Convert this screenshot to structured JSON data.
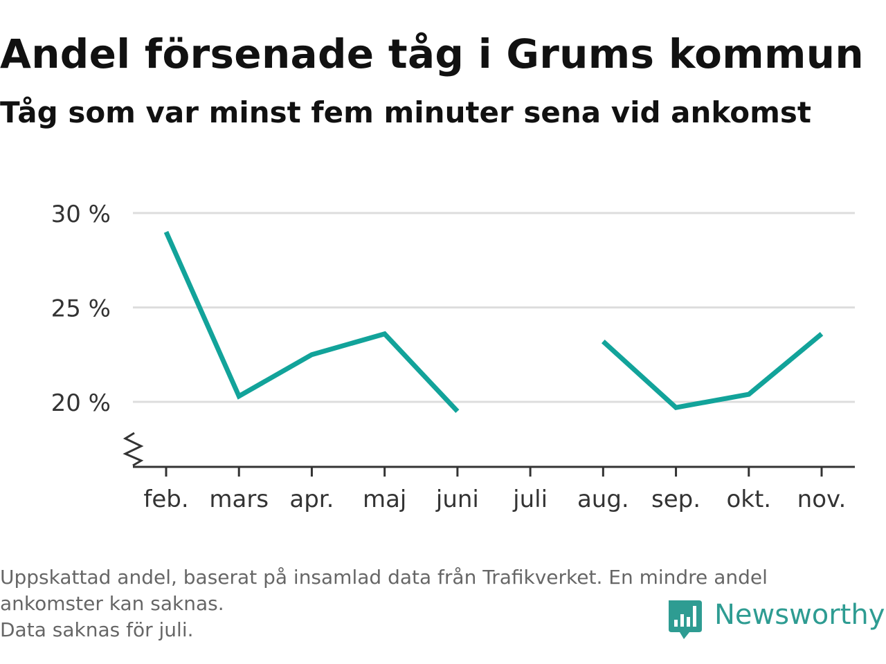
{
  "title": "Andel försenade tåg i Grums kommun",
  "subtitle": "Tåg som var minst fem minuter sena vid ankomst",
  "footnote": {
    "line1": "Uppskattad andel, baserat på insamlad data från Trafikverket. En mindre andel",
    "line2": "ankomster kan saknas.",
    "line3": "Data saknas för juli."
  },
  "brand": {
    "name": "Newsworthy",
    "icon": "bar-chart-speech-bubble-icon"
  },
  "colors": {
    "line": "#12a39a",
    "grid": "#dddddd",
    "axis": "#333333",
    "text": "#333333",
    "brand": "#2e9c92"
  },
  "chart_data": {
    "type": "line",
    "title": "Andel försenade tåg i Grums kommun",
    "subtitle": "Tåg som var minst fem minuter sena vid ankomst",
    "xlabel": "",
    "ylabel": "",
    "categories": [
      "feb.",
      "mars",
      "apr.",
      "maj",
      "juni",
      "juli",
      "aug.",
      "sep.",
      "okt.",
      "nov."
    ],
    "series": [
      {
        "values": [
          29.0,
          20.3,
          22.5,
          23.6,
          19.5,
          null,
          23.2,
          19.7,
          20.4,
          23.6
        ]
      }
    ],
    "yticks": [
      20,
      25,
      30
    ],
    "ytick_labels": [
      "20 %",
      "25 %",
      "30 %"
    ],
    "ylim": [
      16.6,
      30
    ],
    "y_axis_break": true,
    "grid": true,
    "legend": "none"
  }
}
